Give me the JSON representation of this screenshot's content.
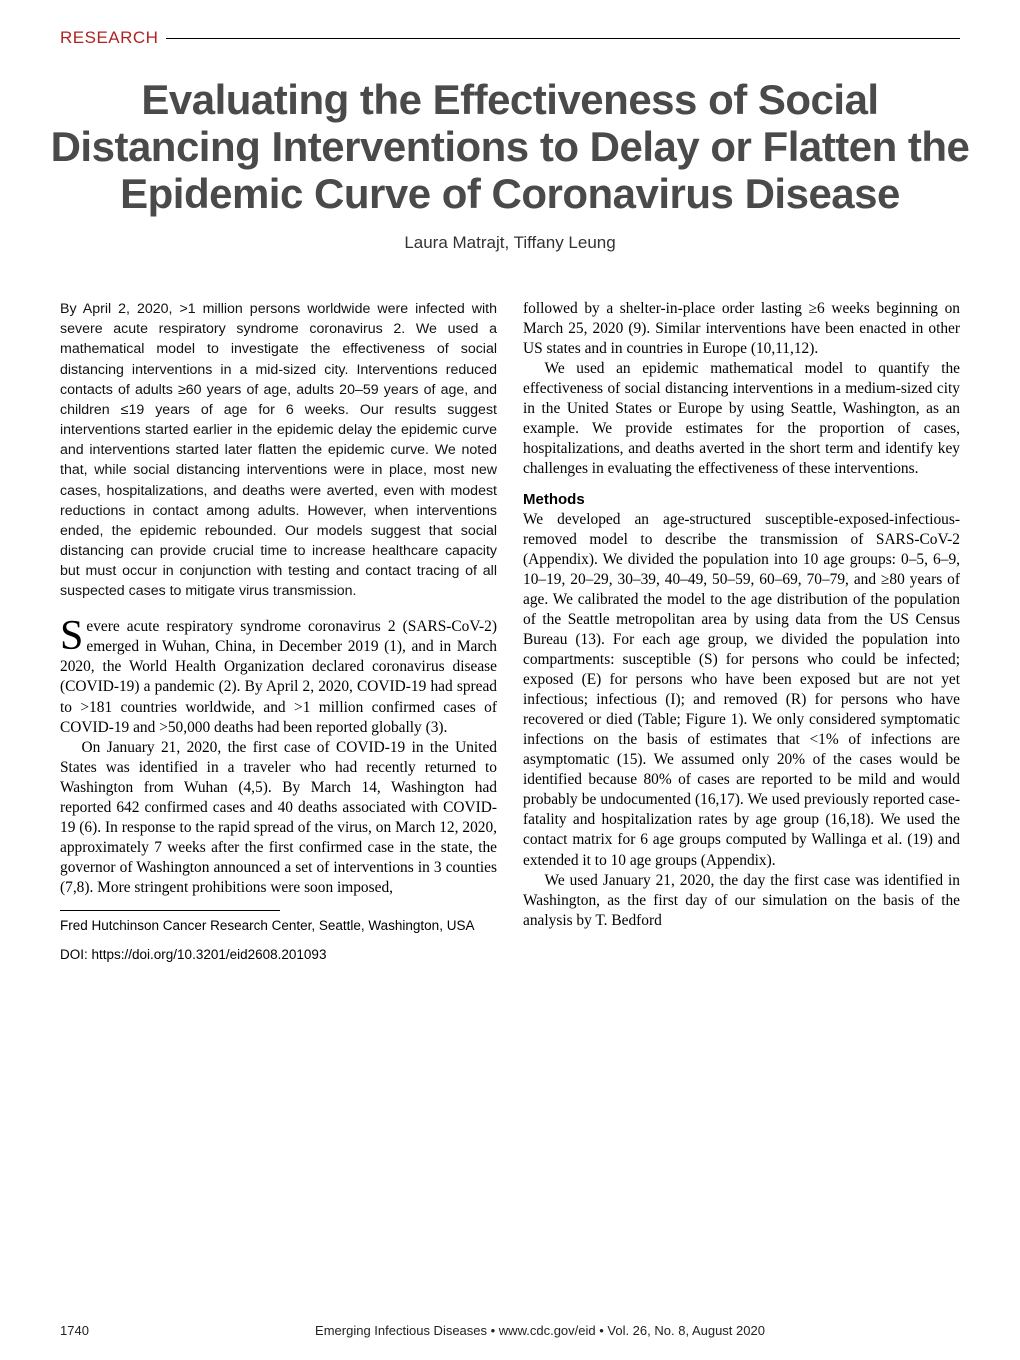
{
  "category": "RESEARCH",
  "title": "Evaluating the Effectiveness of Social Distancing Interventions to Delay or Flatten the Epidemic Curve of Coronavirus Disease",
  "authors": "Laura Matrajt, Tiffany Leung",
  "abstract": "By April 2, 2020, >1 million persons worldwide were infected with severe acute respiratory syndrome coronavirus 2. We used a mathematical model to investigate the effectiveness of social distancing interventions in a mid-sized city. Interventions reduced contacts of adults ≥60 years of age, adults 20–59 years of age, and children ≤19 years of age for 6 weeks. Our results suggest interventions started earlier in the epidemic delay the epidemic curve and interventions started later flatten the epidemic curve. We noted that, while social distancing interventions were in place, most new cases, hospitalizations, and deaths were averted, even with modest reductions in contact among adults. However, when interventions ended, the epidemic rebounded. Our models suggest that social distancing can provide crucial time to increase healthcare capacity but must occur in conjunction with testing and contact tracing of all suspected cases to mitigate virus transmission.",
  "left_p1": "evere acute respiratory syndrome coronavirus 2 (SARS-CoV-2) emerged in Wuhan, China, in December 2019 (1), and in March 2020, the World Health Organization declared coronavirus disease (COVID-19) a pandemic (2). By April 2, 2020, COVID-19 had spread to >181 countries worldwide, and >1 million confirmed cases of COVID-19 and >50,000 deaths had been reported globally (3).",
  "left_p2": "On January 21, 2020, the first case of COVID-19 in the United States was identified in a traveler who had recently returned to Washington from Wuhan (4,5). By March 14, Washington had reported 642 confirmed cases and 40 deaths associated with COVID-19 (6). In response to the rapid spread of the virus, on March 12, 2020, approximately 7 weeks after the first confirmed case in the state, the governor of Washington announced a set of interventions in 3 counties (7,8). More stringent prohibitions were soon imposed,",
  "affiliation": "Fred Hutchinson Cancer Research Center, Seattle, Washington, USA",
  "doi": "DOI: https://doi.org/10.3201/eid2608.201093",
  "right_p1": "followed by a shelter-in-place order lasting ≥6 weeks beginning on March 25, 2020 (9). Similar interventions have been enacted in other US states and in countries in Europe (10,11,12).",
  "right_p2": "We used an epidemic mathematical model to quantify the effectiveness of social distancing interventions in a medium-sized city in the United States or Europe by using Seattle, Washington, as an example. We provide estimates for the proportion of cases, hospitalizations, and deaths averted in the short term and identify key challenges in evaluating the effectiveness of these interventions.",
  "methods_head": "Methods",
  "right_p3": "We developed an age-structured susceptible-exposed-infectious-removed model to describe the transmission of SARS-CoV-2 (Appendix). We divided the population into 10 age groups: 0–5, 6–9, 10–19, 20–29, 30–39, 40–49, 50–59, 60–69, 70–79, and ≥80 years of age. We calibrated the model to the age distribution of the population of the Seattle metropolitan area by using data from the US Census Bureau (13). For each age group, we divided the population into compartments: susceptible (S) for persons who could be infected; exposed (E) for persons who have been exposed but are not yet infectious; infectious (I); and removed (R) for persons who have recovered or died (Table; Figure 1). We only considered symptomatic infections on the basis of estimates that <1% of infections are asymptomatic (15). We assumed only 20% of the cases would be identified because 80% of cases are reported to be mild and would probably be undocumented (16,17). We used previously reported case-fatality and hospitalization rates by age group (16,18). We used the contact matrix for 6 age groups computed by Wallinga et al. (19) and extended it to 10 age groups (Appendix).",
  "right_p4": "We used January 21, 2020, the day the first case was identified in Washington, as the first day of our simulation on the basis of the analysis by T. Bedford",
  "footer": {
    "page": "1740",
    "center": "Emerging Infectious Diseases • www.cdc.gov/eid • Vol. 26, No. 8, August 2020"
  },
  "colors": {
    "accent_red": "#b22222",
    "title_gray": "#4a4a4a",
    "text": "#000000",
    "bg": "#ffffff",
    "rule": "#000000"
  },
  "typography": {
    "title_fontsize": 42,
    "title_family": "Arial",
    "body_fontsize": 15.4,
    "abstract_fontsize": 14.2,
    "authors_fontsize": 17
  }
}
